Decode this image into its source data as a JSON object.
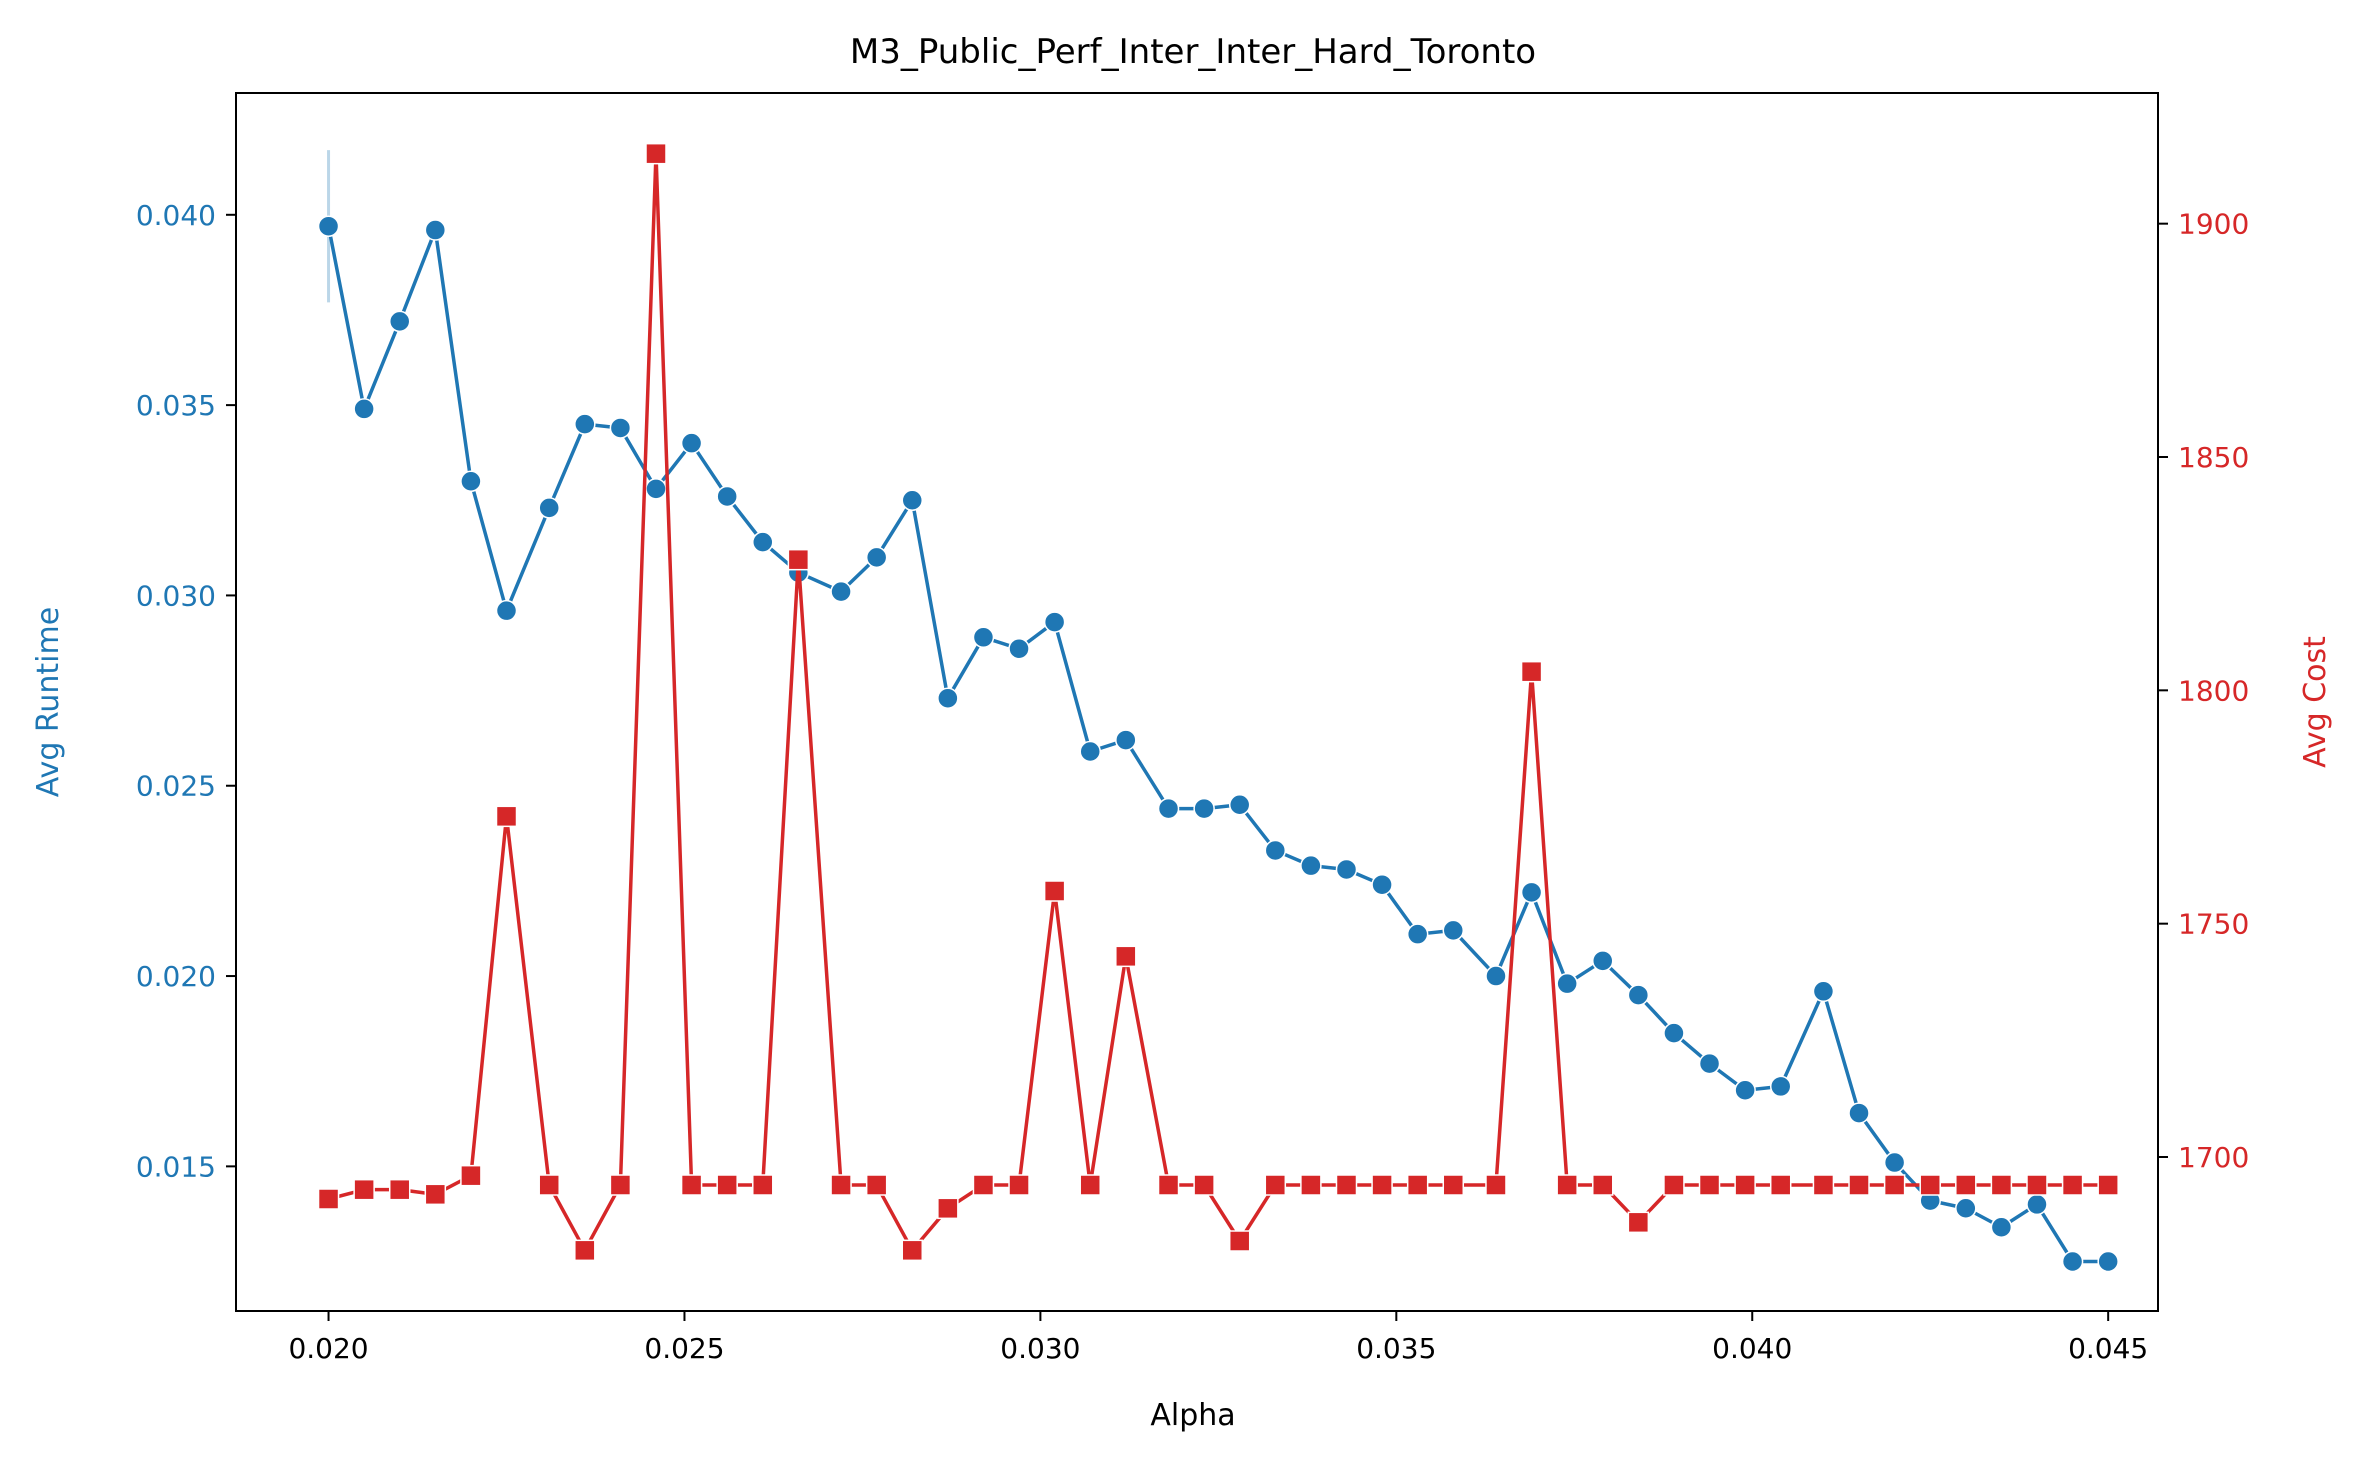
{
  "chart_data": {
    "type": "line",
    "title": "M3_Public_Perf_Inter_Inter_Hard_Toronto",
    "xlabel": "Alpha",
    "ylabel": "Avg Runtime",
    "y2label": "Avg Cost",
    "xlim": [
      0.0187,
      0.0457
    ],
    "ylim": [
      0.0112,
      0.0432
    ],
    "y2lim": [
      1667,
      1928
    ],
    "xticks": [
      "0.020",
      "0.025",
      "0.030",
      "0.035",
      "0.040",
      "0.045"
    ],
    "xtick_values": [
      0.02,
      0.025,
      0.03,
      0.035,
      0.04,
      0.045
    ],
    "yticks": [
      "0.015",
      "0.020",
      "0.025",
      "0.030",
      "0.035",
      "0.040"
    ],
    "ytick_values": [
      0.015,
      0.02,
      0.025,
      0.03,
      0.035,
      0.04
    ],
    "y2ticks": [
      "1700",
      "1750",
      "1800",
      "1850",
      "1900"
    ],
    "y2tick_values": [
      1700,
      1750,
      1800,
      1850,
      1900
    ],
    "grid": false,
    "colors": {
      "runtime": "#1f77b4",
      "cost": "#d62728",
      "axes": "#000000"
    },
    "x": [
      0.02,
      0.0205,
      0.021,
      0.0215,
      0.022,
      0.0225,
      0.0231,
      0.0236,
      0.0241,
      0.0246,
      0.0251,
      0.0256,
      0.0261,
      0.0266,
      0.0272,
      0.0277,
      0.0282,
      0.0287,
      0.0292,
      0.0297,
      0.0302,
      0.0307,
      0.0312,
      0.0318,
      0.0323,
      0.0328,
      0.0333,
      0.0338,
      0.0343,
      0.0348,
      0.0353,
      0.0358,
      0.0364,
      0.0369,
      0.0374,
      0.0379,
      0.0384,
      0.0389,
      0.0394,
      0.0399,
      0.0404,
      0.041,
      0.0415,
      0.042,
      0.0425,
      0.043,
      0.0435,
      0.044,
      0.0445,
      0.045
    ],
    "series": [
      {
        "axis": "left",
        "marker": "circle",
        "values": [
          0.0397,
          0.0349,
          0.0372,
          0.0396,
          0.033,
          0.0296,
          0.0323,
          0.0345,
          0.0344,
          0.0328,
          0.034,
          0.0326,
          0.0314,
          0.0306,
          0.0301,
          0.031,
          0.0325,
          0.0273,
          0.0289,
          0.0286,
          0.0293,
          0.0259,
          0.0262,
          0.0244,
          0.0244,
          0.0245,
          0.0233,
          0.0229,
          0.0228,
          0.0224,
          0.0211,
          0.0212,
          0.02,
          0.0222,
          0.0198,
          0.0204,
          0.0195,
          0.0185,
          0.0177,
          0.017,
          0.0171,
          0.0196,
          0.0164,
          0.0151,
          0.0141,
          0.0139,
          0.0134,
          0.014,
          0.0125,
          0.0125
        ],
        "error_bar": {
          "x": 0.02,
          "low": 0.0377,
          "high": 0.0417
        }
      },
      {
        "axis": "right",
        "marker": "square",
        "values": [
          1691,
          1693,
          1693,
          1692,
          1696,
          1773,
          1694,
          1680,
          1694,
          1915,
          1694,
          1694,
          1694,
          1828,
          1694,
          1694,
          1680,
          1689,
          1694,
          1694,
          1757,
          1694,
          1743,
          1694,
          1694,
          1682,
          1694,
          1694,
          1694,
          1694,
          1694,
          1694,
          1694,
          1804,
          1694,
          1694,
          1686,
          1694,
          1694,
          1694,
          1694,
          1694,
          1694,
          1694,
          1694,
          1694,
          1694,
          1694,
          1694,
          1694
        ]
      }
    ]
  }
}
